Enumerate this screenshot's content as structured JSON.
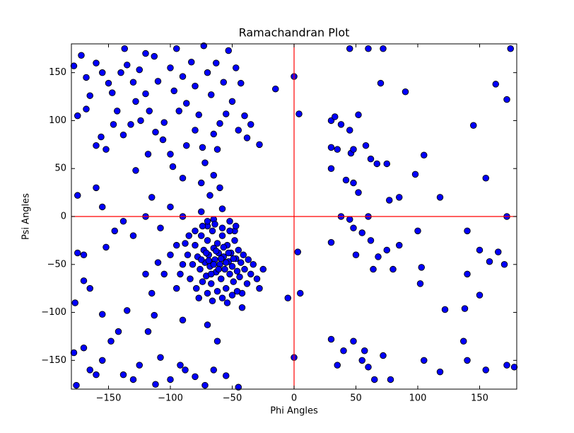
{
  "chart_data": {
    "type": "scatter",
    "title": "Ramachandran Plot",
    "xlabel": "Phi Angles",
    "ylabel": "Psi Angles",
    "x": [
      -178,
      -172,
      -168,
      -165,
      -160,
      -155,
      -150,
      -147,
      -140,
      -137,
      -135,
      -130,
      -128,
      -125,
      -120,
      -117,
      -113,
      -110,
      -105,
      -100,
      -97,
      -95,
      -90,
      -87,
      -83,
      -80,
      -77,
      -73,
      -70,
      -67,
      -63,
      -60,
      -57,
      -53,
      -50,
      -47,
      -43,
      -40,
      -35,
      -28,
      -15,
      -175,
      -168,
      -160,
      -152,
      -146,
      -138,
      -132,
      -124,
      -118,
      -112,
      -106,
      -100,
      -93,
      -87,
      -80,
      -74,
      -65,
      -55,
      -45,
      -38,
      -120,
      -143,
      -156,
      -128,
      -98,
      -72,
      -65,
      -90,
      -62,
      30,
      33,
      38,
      45,
      52,
      58,
      62,
      67,
      75,
      90,
      105,
      145,
      163,
      172,
      175,
      45,
      60,
      72,
      70,
      30,
      35,
      46,
      48,
      30,
      42,
      48,
      52,
      77,
      85,
      98,
      118,
      155,
      0,
      4,
      -178,
      -176,
      -170,
      -165,
      -160,
      -155,
      -148,
      -142,
      -138,
      -130,
      -125,
      -118,
      -112,
      -108,
      -100,
      -92,
      -88,
      -80,
      -72,
      -65,
      -55,
      -45,
      -90,
      -70,
      -62,
      -113,
      -135,
      -177,
      -170,
      -165,
      -155,
      -175,
      -170,
      -152,
      30,
      35,
      40,
      48,
      55,
      57,
      60,
      65,
      72,
      78,
      105,
      118,
      122,
      137,
      140,
      150,
      155,
      172,
      178,
      5,
      0,
      3,
      -5,
      102,
      138,
      30,
      38,
      45,
      48,
      55,
      60,
      62,
      68,
      75,
      80,
      100,
      103,
      140,
      150,
      158,
      165,
      170,
      172,
      140,
      64,
      50,
      85,
      -175,
      -160,
      -155,
      -145,
      -138,
      -130,
      -120,
      -115,
      -108,
      -100,
      -95,
      -90,
      -85,
      -80,
      -75,
      -70,
      -65,
      -58,
      -52,
      -48,
      -110,
      -105,
      -100,
      -95,
      -115,
      -120,
      -60,
      -68,
      -75,
      -80,
      -78,
      -76,
      -75,
      -73,
      -72,
      -71,
      -70,
      -69,
      -68,
      -67,
      -66,
      -65,
      -64,
      -63,
      -62,
      -61,
      -60,
      -59,
      -58,
      -57,
      -56,
      -55,
      -54,
      -53,
      -52,
      -51,
      -50,
      -49,
      -48,
      -47,
      -46,
      -45,
      -44,
      -43,
      -42,
      -41,
      -40,
      -38,
      -37,
      -35,
      -33,
      -30,
      -28,
      -25,
      -82,
      -84,
      -86,
      -79,
      -77,
      -74,
      -70,
      -66,
      -62,
      -58,
      -54,
      -50,
      -46,
      -42,
      -74,
      -70,
      -64,
      -58,
      -52,
      -47,
      -90,
      -92,
      -88,
      -67,
      -63,
      -59,
      -55,
      -61,
      -57,
      -65,
      -69,
      -53,
      -49,
      -71,
      -75
    ],
    "values": [
      157,
      168,
      145,
      126,
      160,
      150,
      139,
      129,
      150,
      175,
      158,
      140,
      120,
      153,
      128,
      110,
      167,
      141,
      98,
      155,
      131,
      175,
      146,
      118,
      161,
      136,
      106,
      178,
      150,
      127,
      160,
      97,
      140,
      173,
      120,
      155,
      139,
      105,
      96,
      75,
      133,
      105,
      112,
      74,
      70,
      96,
      85,
      96,
      100,
      65,
      88,
      80,
      65,
      110,
      74,
      90,
      72,
      86,
      107,
      90,
      82,
      170,
      110,
      83,
      48,
      52,
      56,
      43,
      40,
      70,
      100,
      104,
      96,
      90,
      106,
      74,
      60,
      55,
      55,
      130,
      64,
      95,
      138,
      122,
      175,
      175,
      175,
      175,
      139,
      72,
      70,
      66,
      70,
      50,
      38,
      35,
      25,
      17,
      20,
      44,
      20,
      40,
      146,
      107,
      -142,
      -176,
      -137,
      -160,
      -165,
      -150,
      -130,
      -120,
      -165,
      -170,
      -155,
      -120,
      -175,
      -147,
      -170,
      -155,
      -160,
      -167,
      -176,
      -160,
      -166,
      -178,
      -108,
      -113,
      -130,
      -103,
      -98,
      -90,
      -67,
      -75,
      -102,
      -38,
      -40,
      -32,
      -128,
      -155,
      -140,
      -130,
      -150,
      -140,
      -157,
      -170,
      -145,
      -170,
      -150,
      -162,
      -97,
      -130,
      -150,
      -82,
      -160,
      -155,
      -157,
      -80,
      -147,
      -37,
      -85,
      -70,
      -96,
      -27,
      0,
      -3,
      -12,
      -17,
      0,
      -25,
      -42,
      -35,
      -55,
      -15,
      -53,
      -15,
      -35,
      -47,
      -37,
      -50,
      0,
      -60,
      -55,
      -40,
      -30,
      22,
      30,
      10,
      -15,
      -5,
      -20,
      0,
      20,
      -12,
      10,
      -30,
      0,
      -20,
      -15,
      5,
      -10,
      -3,
      8,
      -5,
      -15,
      -48,
      -60,
      -40,
      -75,
      -80,
      -60,
      30,
      22,
      35,
      -30,
      -42,
      -55,
      -20,
      -35,
      -48,
      -62,
      -25,
      -40,
      -52,
      -70,
      -15,
      -33,
      -45,
      -58,
      -28,
      -38,
      -50,
      -65,
      -20,
      -42,
      -55,
      -75,
      -30,
      -47,
      -60,
      -38,
      -52,
      -68,
      -25,
      -44,
      -57,
      -35,
      -63,
      -48,
      -80,
      -40,
      -55,
      -70,
      -45,
      -60,
      -50,
      -65,
      -75,
      -55,
      -50,
      -65,
      -40,
      -75,
      -85,
      -68,
      -80,
      -88,
      -78,
      -85,
      -90,
      -82,
      -78,
      -95,
      -10,
      -5,
      -8,
      -12,
      -15,
      -10,
      -50,
      -60,
      -28,
      -60,
      -36,
      -44,
      -48,
      -55,
      -32,
      -50,
      -46,
      -38,
      -44,
      -38,
      -45
    ],
    "color": "#0000ff",
    "edgecolor": "#000000",
    "xlim": [
      -180,
      180
    ],
    "ylim": [
      -180,
      180
    ],
    "xticks": [
      {
        "value": -150,
        "label": "−150"
      },
      {
        "value": -100,
        "label": "−100"
      },
      {
        "value": -50,
        "label": "−50"
      },
      0,
      50,
      100,
      150
    ],
    "yticks": [
      {
        "value": -150,
        "label": "−150"
      },
      {
        "value": -100,
        "label": "−100"
      },
      {
        "value": -50,
        "label": "−50"
      },
      0,
      50,
      100,
      150
    ],
    "vlines": [
      0
    ],
    "hlines": [
      0
    ],
    "line_color": "#ff0000"
  }
}
